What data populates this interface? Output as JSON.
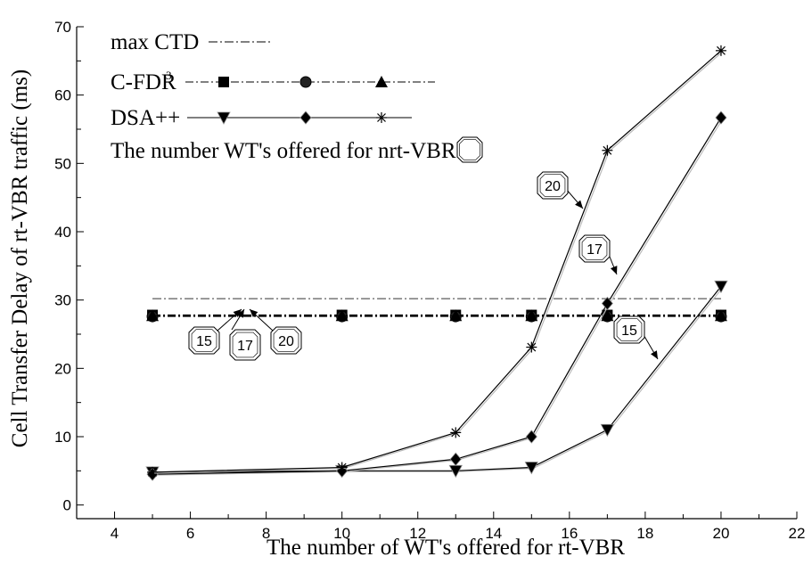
{
  "chart_data": {
    "type": "line",
    "xlabel": "The number of WT's offered for rt-VBR",
    "ylabel": "Cell Transfer Delay of rt-VBR traffic (ms)",
    "xlim": [
      3,
      22
    ],
    "ylim": [
      -2,
      70
    ],
    "x_ticks": [
      4,
      6,
      8,
      10,
      12,
      14,
      16,
      18,
      20,
      22
    ],
    "y_ticks": [
      0,
      10,
      20,
      30,
      40,
      50,
      60,
      70
    ],
    "grid": false,
    "legend_position": "top-left",
    "legend": [
      {
        "label": "max CTD",
        "group": "max"
      },
      {
        "label": "C-FDR",
        "superscript": "3",
        "group": "cfdr"
      },
      {
        "label": "DSA++",
        "group": "dsa"
      },
      {
        "label": "The number WT's offered for nrt-VBR",
        "callout_symbol": true
      }
    ],
    "series": [
      {
        "name": "max CTD",
        "style": "dashdot-thin",
        "marker": "none",
        "x": [
          5,
          20
        ],
        "y": [
          30.2,
          30.2
        ]
      },
      {
        "name": "C-FDR",
        "nrt": "15",
        "style": "dashdot",
        "marker": "square",
        "x": [
          5,
          10,
          13,
          15,
          17,
          20
        ],
        "y": [
          27.8,
          27.8,
          27.8,
          27.8,
          27.8,
          27.8
        ]
      },
      {
        "name": "C-FDR",
        "nrt": "17",
        "style": "dashdot",
        "marker": "circle",
        "x": [
          5,
          10,
          13,
          15,
          17,
          20
        ],
        "y": [
          27.6,
          27.6,
          27.6,
          27.6,
          27.6,
          27.6
        ]
      },
      {
        "name": "C-FDR",
        "nrt": "20",
        "style": "dashdot",
        "marker": "triangle-up",
        "x": [
          5,
          10,
          13,
          15,
          17,
          20
        ],
        "y": [
          27.7,
          27.7,
          27.7,
          27.7,
          27.7,
          27.7
        ]
      },
      {
        "name": "DSA++",
        "nrt": "15",
        "style": "solid",
        "marker": "triangle-down",
        "x": [
          5,
          10,
          13,
          15,
          17,
          20
        ],
        "y": [
          4.8,
          5.0,
          5.0,
          5.5,
          11.0,
          32.0
        ]
      },
      {
        "name": "DSA++",
        "nrt": "17",
        "style": "solid",
        "marker": "diamond",
        "x": [
          5,
          10,
          13,
          15,
          17,
          20
        ],
        "y": [
          4.5,
          5.0,
          6.7,
          10.0,
          29.5,
          56.7
        ]
      },
      {
        "name": "DSA++",
        "nrt": "20",
        "style": "solid",
        "marker": "star",
        "x": [
          5,
          10,
          13,
          15,
          17,
          20
        ],
        "y": [
          4.8,
          5.5,
          10.6,
          23.1,
          51.9,
          66.5
        ]
      }
    ],
    "annotations": [
      {
        "text": "15",
        "target": "C-FDR"
      },
      {
        "text": "17",
        "target": "C-FDR"
      },
      {
        "text": "20",
        "target": "C-FDR"
      },
      {
        "text": "20",
        "target": "DSA++"
      },
      {
        "text": "17",
        "target": "DSA++"
      },
      {
        "text": "15",
        "target": "DSA++"
      }
    ]
  }
}
